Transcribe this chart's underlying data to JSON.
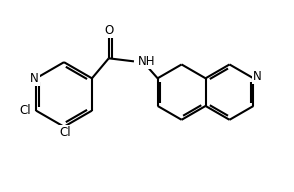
{
  "bg_color": "#ffffff",
  "line_color": "#000000",
  "line_width": 1.5,
  "font_size": 8.5,
  "figsize": [
    2.94,
    1.92
  ],
  "dpi": 100,
  "xlim": [
    0,
    9.5
  ],
  "ylim": [
    0,
    6.2
  ]
}
